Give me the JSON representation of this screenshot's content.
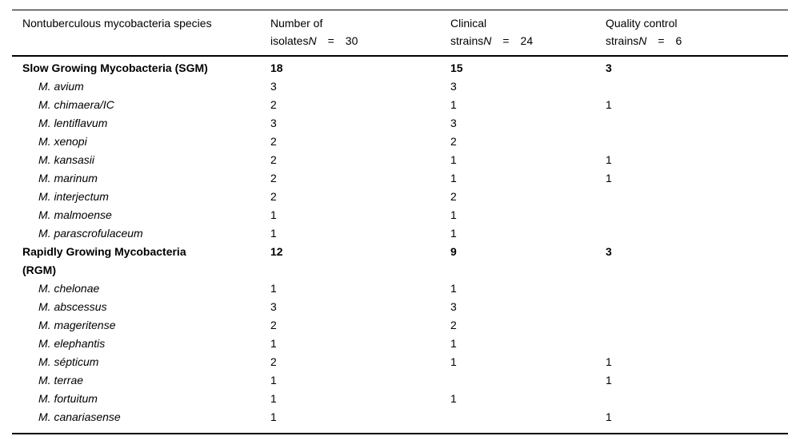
{
  "page": {
    "background_color": "#ffffff",
    "text_color": "#000000",
    "rule_color": "#000000"
  },
  "table": {
    "header": {
      "col1": "Nontuberculous mycobacteria species",
      "col2": {
        "line1": "Number of",
        "line2_prefix": "isolates",
        "n_symbol": "N",
        "eq": "=",
        "n_value": "30"
      },
      "col3": {
        "line1": "Clinical",
        "line2_prefix": "strains",
        "n_symbol": "N",
        "eq": "=",
        "n_value": "24"
      },
      "col4": {
        "line1": "Quality control",
        "line2_prefix": "strains",
        "n_symbol": "N",
        "eq": "=",
        "n_value": "6"
      }
    },
    "rows": [
      {
        "type": "group",
        "name_lines": [
          "Slow Growing Mycobacteria (SGM)"
        ],
        "isolates": "18",
        "clinical": "15",
        "qc": "3"
      },
      {
        "type": "species",
        "name_lines": [
          "M. avium"
        ],
        "isolates": "3",
        "clinical": "3",
        "qc": ""
      },
      {
        "type": "species",
        "name_lines": [
          "M. chimaera/IC"
        ],
        "isolates": "2",
        "clinical": "1",
        "qc": "1"
      },
      {
        "type": "species",
        "name_lines": [
          "M. lentiflavum"
        ],
        "isolates": "3",
        "clinical": "3",
        "qc": ""
      },
      {
        "type": "species",
        "name_lines": [
          "M. xenopi"
        ],
        "isolates": "2",
        "clinical": "2",
        "qc": ""
      },
      {
        "type": "species",
        "name_lines": [
          "M. kansasii"
        ],
        "isolates": "2",
        "clinical": "1",
        "qc": "1"
      },
      {
        "type": "species",
        "name_lines": [
          "M. marinum"
        ],
        "isolates": "2",
        "clinical": "1",
        "qc": "1"
      },
      {
        "type": "species",
        "name_lines": [
          "M. interjectum"
        ],
        "isolates": "2",
        "clinical": "2",
        "qc": ""
      },
      {
        "type": "species",
        "name_lines": [
          "M. malmoense"
        ],
        "isolates": "1",
        "clinical": "1",
        "qc": ""
      },
      {
        "type": "species",
        "name_lines": [
          "M. parascrofulaceum"
        ],
        "isolates": "1",
        "clinical": "1",
        "qc": ""
      },
      {
        "type": "group",
        "name_lines": [
          "Rapidly Growing Mycobacteria",
          "(RGM)"
        ],
        "isolates": "12",
        "clinical": "9",
        "qc": "3"
      },
      {
        "type": "species",
        "name_lines": [
          "M. chelonae"
        ],
        "isolates": "1",
        "clinical": "1",
        "qc": ""
      },
      {
        "type": "species",
        "name_lines": [
          "M. abscessus"
        ],
        "isolates": "3",
        "clinical": "3",
        "qc": ""
      },
      {
        "type": "species",
        "name_lines": [
          "M. mageritense"
        ],
        "isolates": "2",
        "clinical": "2",
        "qc": ""
      },
      {
        "type": "species",
        "name_lines": [
          "M. elephantis"
        ],
        "isolates": "1",
        "clinical": "1",
        "qc": ""
      },
      {
        "type": "species",
        "name_lines": [
          "M. sépticum"
        ],
        "isolates": "2",
        "clinical": "1",
        "qc": "1"
      },
      {
        "type": "species",
        "name_lines": [
          "M. terrae"
        ],
        "isolates": "1",
        "clinical": "",
        "qc": "1"
      },
      {
        "type": "species",
        "name_lines": [
          "M. fortuitum"
        ],
        "isolates": "1",
        "clinical": "1",
        "qc": ""
      },
      {
        "type": "species",
        "name_lines": [
          "M. canariasense"
        ],
        "isolates": "1",
        "clinical": "",
        "qc": "1"
      }
    ]
  }
}
